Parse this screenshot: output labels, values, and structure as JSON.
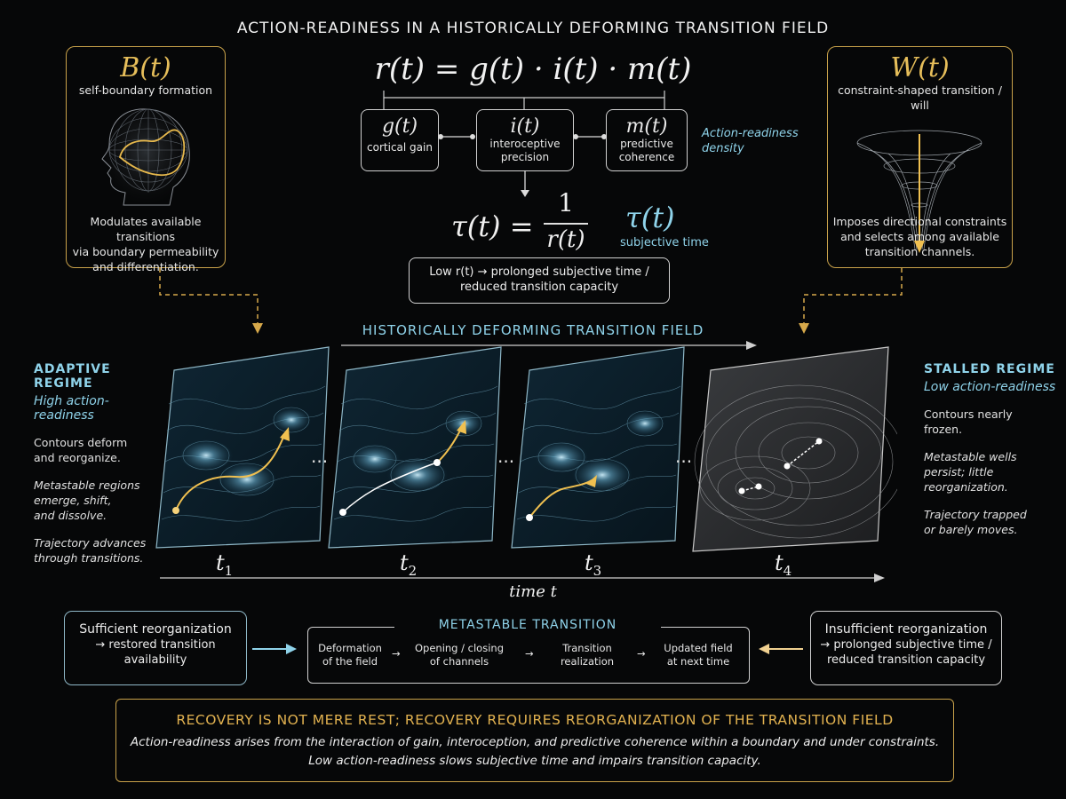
{
  "title": "ACTION-READINESS IN A HISTORICALLY DEFORMING TRANSITION FIELD",
  "left_box": {
    "symbol": "B(t)",
    "subtitle": "self-boundary formation",
    "icon": "head-wireframe-icon",
    "desc": [
      "Modulates available transitions",
      "via boundary permeability",
      "and differentiation."
    ]
  },
  "right_box": {
    "symbol": "W(t)",
    "subtitle": [
      "constraint-shaped transition /",
      "will"
    ],
    "icon": "funnel-icon",
    "desc": [
      "Imposes directional constraints",
      "and selects among available",
      "transition channels."
    ]
  },
  "formula": {
    "main": "r(t) = g(t) · i(t) · m(t)",
    "components": [
      {
        "symbol": "g(t)",
        "label": [
          "cortical gain"
        ]
      },
      {
        "symbol": "i(t)",
        "label": [
          "interoceptive",
          "precision"
        ]
      },
      {
        "symbol": "m(t)",
        "label": [
          "predictive",
          "coherence"
        ]
      }
    ],
    "density_label": [
      "Action-readiness",
      "density"
    ],
    "tau_left": "τ(t) =",
    "tau_num": "1",
    "tau_den": "r(t)",
    "tau_symbol": "τ(t)",
    "tau_label": "subjective time",
    "low_box": [
      "Low  r(t) →  prolonged subjective time /",
      "reduced transition capacity"
    ]
  },
  "field": {
    "header": "HISTORICALLY DEFORMING TRANSITION FIELD",
    "time_labels": [
      "t",
      "t",
      "t",
      "t"
    ],
    "time_subs": [
      "1",
      "2",
      "3",
      "4"
    ],
    "dots": "···",
    "time_axis": "time  t"
  },
  "adaptive": {
    "heading": "ADAPTIVE REGIME",
    "sub": "High action-readiness",
    "items": [
      [
        "Contours deform",
        "and reorganize."
      ],
      [
        "Metastable regions",
        "emerge, shift,",
        "and dissolve."
      ],
      [
        "Trajectory advances",
        "through transitions."
      ]
    ]
  },
  "stalled": {
    "heading": "STALLED REGIME",
    "sub": "Low action-readiness",
    "items": [
      [
        "Contours nearly",
        "frozen."
      ],
      [
        "Metastable wells",
        "persist; little",
        "reorganization."
      ],
      [
        "Trajectory trapped",
        "or barely moves."
      ]
    ]
  },
  "metastable": {
    "title": "METASTABLE TRANSITION",
    "steps": [
      [
        "Deformation",
        "of the field"
      ],
      [
        "Opening / closing",
        "of channels"
      ],
      [
        "Transition",
        "realization"
      ],
      [
        "Updated field",
        "at next time"
      ]
    ]
  },
  "left_outcome": [
    "Sufficient reorganization",
    "→ restored transition",
    "availability"
  ],
  "right_outcome": [
    "Insufficient reorganization",
    "→ prolonged subjective time /",
    "reduced transition capacity"
  ],
  "bottom": {
    "headline": "RECOVERY IS NOT MERE REST; RECOVERY REQUIRES REORGANIZATION OF THE TRANSITION FIELD",
    "lines": [
      "Action-readiness arises from the interaction of gain, interoception, and predictive coherence within a boundary and under constraints.",
      "Low action-readiness slows subjective time and impairs transition capacity."
    ]
  },
  "colors": {
    "gold": "#c9a24a",
    "cyan": "#8fd3ea",
    "background": "#060708"
  }
}
